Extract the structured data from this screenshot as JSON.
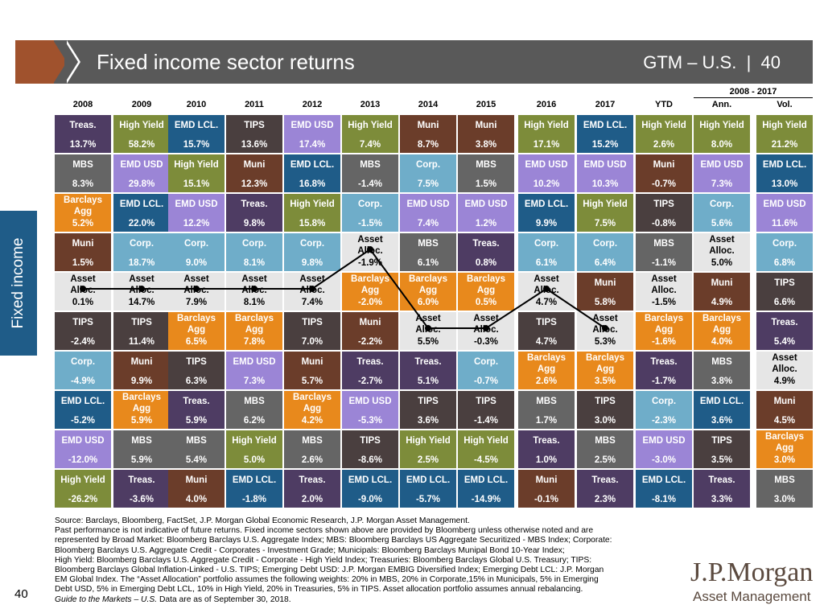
{
  "header": {
    "title": "Fixed income sector returns",
    "gtm": "GTM – U.S.",
    "page": "40"
  },
  "side_label": "Fixed income",
  "span_label": "2008 - 2017",
  "colors": {
    "Treas.": "#4e3c63",
    "High Yield": "#7d8c3a",
    "EMD LCL.": "#1f5c88",
    "TIPS": "#4a3f3f",
    "EMD USD": "#9b85d6",
    "Muni": "#6b3d2a",
    "MBS": "#656565",
    "Corp.": "#6fadc9",
    "Barclays Agg": "#e8891c",
    "Asset Alloc.": "#e6e6e6"
  },
  "chart_data": {
    "type": "table",
    "columns": [
      "2008",
      "2009",
      "2010",
      "2011",
      "2012",
      "2013",
      "2014",
      "2015",
      "2016",
      "2017",
      "YTD",
      "Ann.",
      "Vol."
    ],
    "cells": [
      [
        [
          "Treas.",
          "13.7%"
        ],
        [
          "MBS",
          "8.3%"
        ],
        [
          "Barclays Agg",
          "5.2%"
        ],
        [
          "Muni",
          "1.5%"
        ],
        [
          "Asset Alloc.",
          "0.1%"
        ],
        [
          "TIPS",
          "-2.4%"
        ],
        [
          "Corp.",
          "-4.9%"
        ],
        [
          "EMD LCL.",
          "-5.2%"
        ],
        [
          "EMD USD",
          "-12.0%"
        ],
        [
          "High Yield",
          "-26.2%"
        ]
      ],
      [
        [
          "High Yield",
          "58.2%"
        ],
        [
          "EMD USD",
          "29.8%"
        ],
        [
          "EMD LCL.",
          "22.0%"
        ],
        [
          "Corp.",
          "18.7%"
        ],
        [
          "Asset Alloc.",
          "14.7%"
        ],
        [
          "TIPS",
          "11.4%"
        ],
        [
          "Muni",
          "9.9%"
        ],
        [
          "Barclays Agg",
          "5.9%"
        ],
        [
          "MBS",
          "5.9%"
        ],
        [
          "Treas.",
          "-3.6%"
        ]
      ],
      [
        [
          "EMD LCL.",
          "15.7%"
        ],
        [
          "High Yield",
          "15.1%"
        ],
        [
          "EMD USD",
          "12.2%"
        ],
        [
          "Corp.",
          "9.0%"
        ],
        [
          "Asset Alloc.",
          "7.9%"
        ],
        [
          "Barclays Agg",
          "6.5%"
        ],
        [
          "TIPS",
          "6.3%"
        ],
        [
          "Treas.",
          "5.9%"
        ],
        [
          "MBS",
          "5.4%"
        ],
        [
          "Muni",
          "4.0%"
        ]
      ],
      [
        [
          "TIPS",
          "13.6%"
        ],
        [
          "Muni",
          "12.3%"
        ],
        [
          "Treas.",
          "9.8%"
        ],
        [
          "Corp.",
          "8.1%"
        ],
        [
          "Asset Alloc.",
          "8.1%"
        ],
        [
          "Barclays Agg",
          "7.8%"
        ],
        [
          "EMD USD",
          "7.3%"
        ],
        [
          "MBS",
          "6.2%"
        ],
        [
          "High Yield",
          "5.0%"
        ],
        [
          "EMD LCL.",
          "-1.8%"
        ]
      ],
      [
        [
          "EMD USD",
          "17.4%"
        ],
        [
          "EMD LCL.",
          "16.8%"
        ],
        [
          "High Yield",
          "15.8%"
        ],
        [
          "Corp.",
          "9.8%"
        ],
        [
          "Asset Alloc.",
          "7.4%"
        ],
        [
          "TIPS",
          "7.0%"
        ],
        [
          "Muni",
          "5.7%"
        ],
        [
          "Barclays Agg",
          "4.2%"
        ],
        [
          "MBS",
          "2.6%"
        ],
        [
          "Treas.",
          "2.0%"
        ]
      ],
      [
        [
          "High Yield",
          "7.4%"
        ],
        [
          "MBS",
          "-1.4%"
        ],
        [
          "Corp.",
          "-1.5%"
        ],
        [
          "Asset Alloc.",
          "-1.9%"
        ],
        [
          "Barclays Agg",
          "-2.0%"
        ],
        [
          "Muni",
          "-2.2%"
        ],
        [
          "Treas.",
          "-2.7%"
        ],
        [
          "EMD USD",
          "-5.3%"
        ],
        [
          "TIPS",
          "-8.6%"
        ],
        [
          "EMD LCL.",
          "-9.0%"
        ]
      ],
      [
        [
          "Muni",
          "8.7%"
        ],
        [
          "Corp.",
          "7.5%"
        ],
        [
          "EMD USD",
          "7.4%"
        ],
        [
          "MBS",
          "6.1%"
        ],
        [
          "Barclays Agg",
          "6.0%"
        ],
        [
          "Asset Alloc.",
          "5.5%"
        ],
        [
          "Treas.",
          "5.1%"
        ],
        [
          "TIPS",
          "3.6%"
        ],
        [
          "High Yield",
          "2.5%"
        ],
        [
          "EMD LCL.",
          "-5.7%"
        ]
      ],
      [
        [
          "Muni",
          "3.8%"
        ],
        [
          "MBS",
          "1.5%"
        ],
        [
          "EMD USD",
          "1.2%"
        ],
        [
          "Treas.",
          "0.8%"
        ],
        [
          "Barclays Agg",
          "0.5%"
        ],
        [
          "Asset Alloc.",
          "-0.3%"
        ],
        [
          "Corp.",
          "-0.7%"
        ],
        [
          "TIPS",
          "-1.4%"
        ],
        [
          "High Yield",
          "-4.5%"
        ],
        [
          "EMD LCL.",
          "-14.9%"
        ]
      ],
      [
        [
          "High Yield",
          "17.1%"
        ],
        [
          "EMD USD",
          "10.2%"
        ],
        [
          "EMD LCL.",
          "9.9%"
        ],
        [
          "Corp.",
          "6.1%"
        ],
        [
          "Asset Alloc.",
          "4.7%"
        ],
        [
          "TIPS",
          "4.7%"
        ],
        [
          "Barclays Agg",
          "2.6%"
        ],
        [
          "MBS",
          "1.7%"
        ],
        [
          "Treas.",
          "1.0%"
        ],
        [
          "Muni",
          "-0.1%"
        ]
      ],
      [
        [
          "EMD LCL.",
          "15.2%"
        ],
        [
          "EMD USD",
          "10.3%"
        ],
        [
          "High Yield",
          "7.5%"
        ],
        [
          "Corp.",
          "6.4%"
        ],
        [
          "Muni",
          "5.8%"
        ],
        [
          "Asset Alloc.",
          "5.3%"
        ],
        [
          "Barclays Agg",
          "3.5%"
        ],
        [
          "TIPS",
          "3.0%"
        ],
        [
          "MBS",
          "2.5%"
        ],
        [
          "Treas.",
          "2.3%"
        ]
      ],
      [
        [
          "High Yield",
          "2.6%"
        ],
        [
          "Muni",
          "-0.7%"
        ],
        [
          "TIPS",
          "-0.8%"
        ],
        [
          "MBS",
          "-1.1%"
        ],
        [
          "Asset Alloc.",
          "-1.5%"
        ],
        [
          "Barclays Agg",
          "-1.6%"
        ],
        [
          "Treas.",
          "-1.7%"
        ],
        [
          "Corp.",
          "-2.3%"
        ],
        [
          "EMD USD",
          "-3.0%"
        ],
        [
          "EMD LCL.",
          "-8.1%"
        ]
      ],
      [
        [
          "High Yield",
          "8.0%"
        ],
        [
          "EMD USD",
          "7.3%"
        ],
        [
          "Corp.",
          "5.6%"
        ],
        [
          "Asset Alloc.",
          "5.0%"
        ],
        [
          "Muni",
          "4.9%"
        ],
        [
          "Barclays Agg",
          "4.0%"
        ],
        [
          "MBS",
          "3.8%"
        ],
        [
          "EMD LCL.",
          "3.6%"
        ],
        [
          "TIPS",
          "3.5%"
        ],
        [
          "Treas.",
          "3.3%"
        ]
      ],
      [
        [
          "High Yield",
          "21.2%"
        ],
        [
          "EMD LCL.",
          "13.0%"
        ],
        [
          "EMD USD",
          "11.6%"
        ],
        [
          "Corp.",
          "6.8%"
        ],
        [
          "TIPS",
          "6.6%"
        ],
        [
          "Treas.",
          "5.4%"
        ],
        [
          "Asset Alloc.",
          "4.9%"
        ],
        [
          "Muni",
          "4.5%"
        ],
        [
          "Barclays Agg",
          "3.0%"
        ],
        [
          "MBS",
          "3.0%"
        ]
      ]
    ],
    "asset_alloc_line_columns": [
      "2008",
      "2009",
      "2010",
      "2011",
      "2012",
      "2013",
      "2014",
      "2015",
      "2016",
      "2017"
    ]
  },
  "footnote": [
    "Source: Barclays, Bloomberg, FactSet, J.P. Morgan Global Economic Research, J.P. Morgan Asset Management.",
    "Past performance is not indicative of future returns. Fixed income sectors shown above are provided by Bloomberg unless otherwise noted and are",
    "represented by Broad Market: Bloomberg Barclays U.S. Aggregate Index; MBS: Bloomberg Barclays US Aggregate Securitized - MBS Index; Corporate:",
    "Bloomberg Barclays U.S. Aggregate Credit - Corporates - Investment Grade; Municipals: Bloomberg Barclays Munipal Bond 10-Year Index;",
    "High Yield: Bloomberg Barclays U.S. Aggregate Credit - Corporate - High Yield Index; Treasuries: Bloomberg Barclays Global U.S. Treasury;  TIPS:",
    "Bloomberg Barclays Global Inflation-Linked - U.S. TIPS; Emerging Debt USD: J.P. Morgan EMBIG Diversified Index; Emerging Debt LCL: J.P. Morgan",
    "EM Global Index. The “Asset Allocation” portfolio assumes the following weights: 20% in MBS, 20% in Corporate,15% in Municipals, 5% in Emerging",
    "Debt USD, 5% in Emerging Debt LCL, 10% in High Yield, 20% in Treasuries, 5% in TIPS. Asset allocation portfolio assumes annual rebalancing.",
    "Data are as of September 30, 2018."
  ],
  "footnote_italic": "Guide to the Markets – U.S.",
  "page_number": "40",
  "logo": {
    "main": "J.P.Morgan",
    "sub": "Asset Management"
  }
}
